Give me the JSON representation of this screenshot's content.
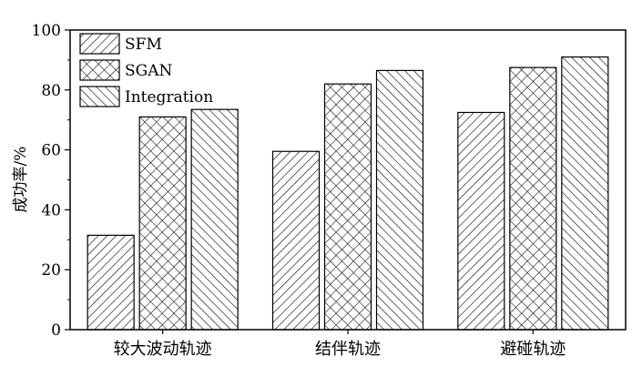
{
  "chart_data": {
    "type": "bar",
    "title": "",
    "xlabel": "",
    "ylabel": "成功率/%",
    "ylim": [
      0,
      100
    ],
    "yticks": [
      0,
      20,
      40,
      60,
      80,
      100
    ],
    "categories": [
      "较大波动轨迹",
      "结伴轨迹",
      "避碰轨迹"
    ],
    "series": [
      {
        "name": "SFM",
        "pattern": "diagonal-hatch",
        "values": [
          31.5,
          59.5,
          72.5
        ]
      },
      {
        "name": "SGAN",
        "pattern": "cross-hatch",
        "values": [
          71,
          82,
          87.5
        ]
      },
      {
        "name": "Integration",
        "pattern": "back-diagonal-hatch",
        "values": [
          73.5,
          86.5,
          91
        ]
      }
    ],
    "legend": "top-left",
    "grid": false
  }
}
